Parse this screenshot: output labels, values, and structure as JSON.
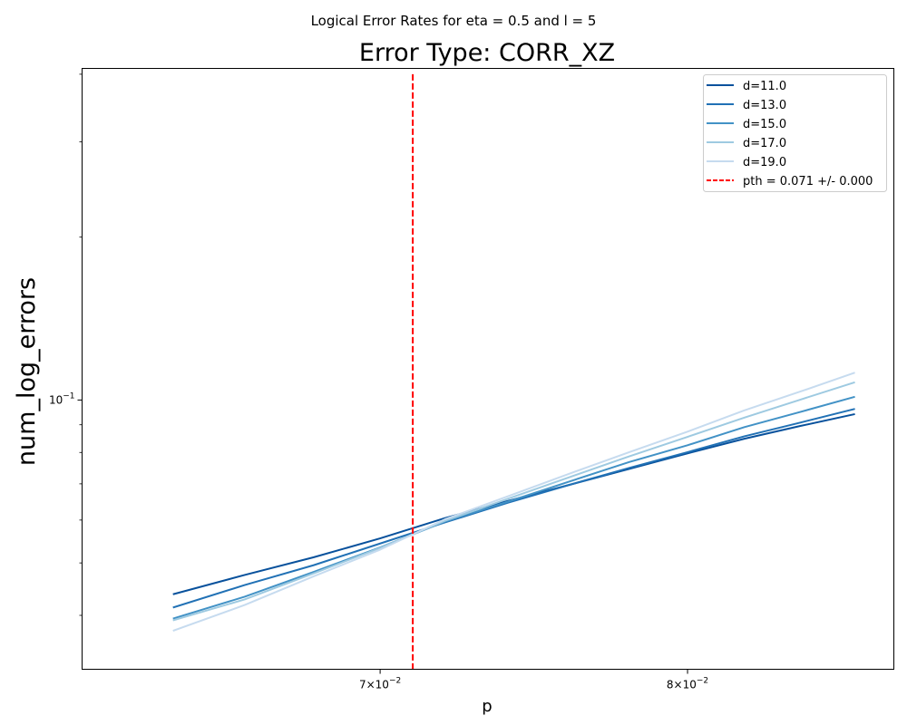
{
  "chart_data": {
    "type": "line",
    "suptitle": "Logical Error Rates for eta = 0.5 and l = 5",
    "title": "Error Type: CORR_XZ",
    "xlabel": "p",
    "ylabel": "num_log_errors",
    "xscale": "log",
    "yscale": "log",
    "xlim": [
      0.0615,
      0.0875
    ],
    "ylim": [
      0.0318,
      0.41
    ],
    "x_ticks": [
      {
        "value": 0.07,
        "mantissa": "7",
        "exponent": "−2"
      },
      {
        "value": 0.08,
        "mantissa": "8",
        "exponent": "−2"
      }
    ],
    "y_ticks": [
      {
        "value": 0.1,
        "mantissa": "10",
        "exponent": "−1"
      }
    ],
    "y_minor_ticks": [
      0.04,
      0.05,
      0.06,
      0.07,
      0.08,
      0.09,
      0.2,
      0.3,
      0.4
    ],
    "legend_position": "top-right",
    "series": [
      {
        "name": "d=11.0",
        "color": "#08519c",
        "x": [
          0.064,
          0.066,
          0.068,
          0.07,
          0.072,
          0.074,
          0.076,
          0.078,
          0.08,
          0.082,
          0.084,
          0.086
        ],
        "y": [
          0.0438,
          0.0475,
          0.0512,
          0.0555,
          0.0605,
          0.0651,
          0.0697,
          0.0746,
          0.0797,
          0.0848,
          0.0895,
          0.0941
        ]
      },
      {
        "name": "d=13.0",
        "color": "#2171b5",
        "x": [
          0.064,
          0.066,
          0.068,
          0.07,
          0.072,
          0.074,
          0.076,
          0.078,
          0.08,
          0.082,
          0.084,
          0.086
        ],
        "y": [
          0.0414,
          0.0455,
          0.0495,
          0.0543,
          0.0594,
          0.0646,
          0.0697,
          0.0749,
          0.0801,
          0.0857,
          0.0908,
          0.0962
        ]
      },
      {
        "name": "d=15.0",
        "color": "#4292c6",
        "x": [
          0.064,
          0.066,
          0.068,
          0.07,
          0.072,
          0.074,
          0.076,
          0.078,
          0.08,
          0.082,
          0.084,
          0.086
        ],
        "y": [
          0.0395,
          0.0433,
          0.0481,
          0.0534,
          0.0596,
          0.0649,
          0.0707,
          0.0768,
          0.0825,
          0.0891,
          0.095,
          0.1013
        ]
      },
      {
        "name": "d=17.0",
        "color": "#9ecae1",
        "x": [
          0.064,
          0.066,
          0.068,
          0.07,
          0.072,
          0.074,
          0.076,
          0.078,
          0.08,
          0.082,
          0.084,
          0.086
        ],
        "y": [
          0.0392,
          0.0428,
          0.0478,
          0.0533,
          0.0598,
          0.0657,
          0.072,
          0.0787,
          0.0855,
          0.0928,
          0.1001,
          0.1077
        ]
      },
      {
        "name": "d=19.0",
        "color": "#c6dbef",
        "x": [
          0.064,
          0.066,
          0.068,
          0.07,
          0.072,
          0.074,
          0.076,
          0.078,
          0.08,
          0.082,
          0.084,
          0.086
        ],
        "y": [
          0.0375,
          0.0418,
          0.0472,
          0.0529,
          0.0602,
          0.0664,
          0.0731,
          0.0801,
          0.0874,
          0.0957,
          0.1036,
          0.1122
        ]
      }
    ],
    "threshold": {
      "label": "pth = 0.071 +/- 0.000",
      "x": 0.071,
      "y_range": [
        0.0318,
        0.4
      ],
      "color": "#ff0000"
    }
  }
}
